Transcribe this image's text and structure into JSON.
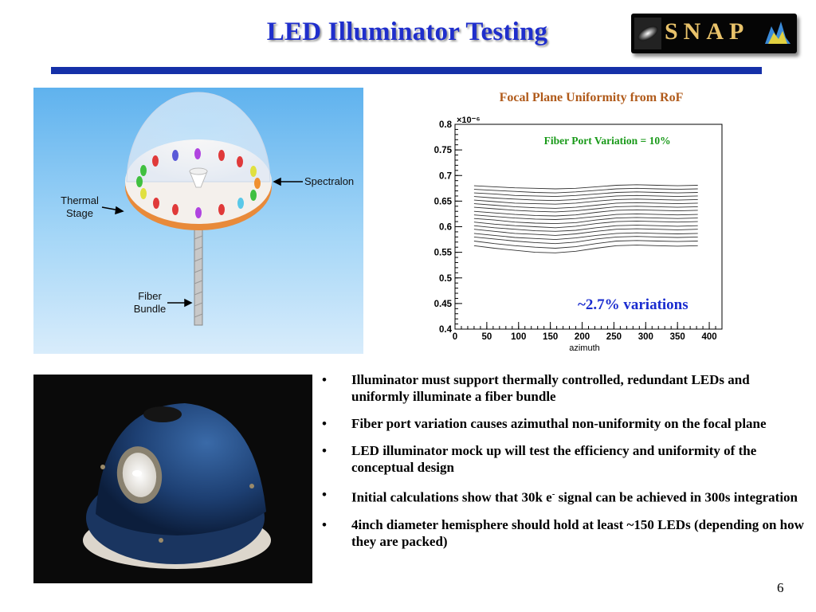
{
  "title": "LED Illuminator Testing",
  "logo": {
    "text": "SNAP"
  },
  "illustration": {
    "labels": {
      "spectralon": "Spectralon",
      "thermal_stage": [
        "Thermal",
        "Stage"
      ],
      "fiber_bundle": [
        "Fiber",
        "Bundle"
      ]
    }
  },
  "chart_data": {
    "type": "line",
    "title": "Focal Plane Uniformity from RoF",
    "annotation": "Fiber Port Variation = 10%",
    "callout": "~2.7% variations",
    "xlabel": "azimuth",
    "ylabel": "",
    "y_multiplier": "×10⁻⁶",
    "xlim": [
      0,
      420
    ],
    "ylim": [
      0.4,
      0.8
    ],
    "x_ticks": [
      "0",
      "50",
      "100",
      "150",
      "200",
      "250",
      "300",
      "350",
      "400"
    ],
    "y_ticks": [
      "0.4",
      "0.45",
      "0.5",
      "0.55",
      "0.6",
      "0.65",
      "0.7",
      "0.75",
      "0.8"
    ],
    "x_range": [
      30,
      382
    ],
    "series": [
      {
        "values": [
          0.68,
          0.678,
          0.676,
          0.675,
          0.674,
          0.675,
          0.678,
          0.681,
          0.682,
          0.681,
          0.68,
          0.681
        ]
      },
      {
        "values": [
          0.673,
          0.671,
          0.669,
          0.667,
          0.666,
          0.668,
          0.671,
          0.674,
          0.675,
          0.674,
          0.673,
          0.674
        ]
      },
      {
        "values": [
          0.666,
          0.664,
          0.661,
          0.66,
          0.659,
          0.661,
          0.664,
          0.667,
          0.668,
          0.667,
          0.666,
          0.667
        ]
      },
      {
        "values": [
          0.659,
          0.656,
          0.654,
          0.652,
          0.651,
          0.653,
          0.657,
          0.66,
          0.661,
          0.66,
          0.659,
          0.66
        ]
      },
      {
        "values": [
          0.652,
          0.649,
          0.646,
          0.645,
          0.644,
          0.646,
          0.65,
          0.653,
          0.654,
          0.653,
          0.652,
          0.653
        ]
      },
      {
        "values": [
          0.645,
          0.642,
          0.639,
          0.637,
          0.636,
          0.638,
          0.642,
          0.646,
          0.647,
          0.646,
          0.645,
          0.646
        ]
      },
      {
        "values": [
          0.638,
          0.635,
          0.632,
          0.63,
          0.629,
          0.631,
          0.635,
          0.639,
          0.64,
          0.639,
          0.638,
          0.639
        ]
      },
      {
        "values": [
          0.63,
          0.627,
          0.624,
          0.622,
          0.621,
          0.623,
          0.628,
          0.632,
          0.633,
          0.632,
          0.631,
          0.632
        ]
      },
      {
        "values": [
          0.623,
          0.62,
          0.617,
          0.615,
          0.614,
          0.616,
          0.62,
          0.624,
          0.625,
          0.624,
          0.623,
          0.624
        ]
      },
      {
        "values": [
          0.616,
          0.613,
          0.609,
          0.607,
          0.606,
          0.608,
          0.613,
          0.617,
          0.618,
          0.617,
          0.616,
          0.617
        ]
      },
      {
        "values": [
          0.609,
          0.605,
          0.602,
          0.6,
          0.598,
          0.601,
          0.606,
          0.61,
          0.611,
          0.61,
          0.609,
          0.61
        ]
      },
      {
        "values": [
          0.602,
          0.598,
          0.595,
          0.592,
          0.591,
          0.593,
          0.598,
          0.602,
          0.603,
          0.602,
          0.601,
          0.602
        ]
      },
      {
        "values": [
          0.595,
          0.591,
          0.587,
          0.585,
          0.583,
          0.586,
          0.591,
          0.595,
          0.596,
          0.595,
          0.594,
          0.595
        ]
      },
      {
        "values": [
          0.587,
          0.583,
          0.579,
          0.577,
          0.575,
          0.578,
          0.583,
          0.587,
          0.588,
          0.587,
          0.586,
          0.587
        ]
      },
      {
        "values": [
          0.58,
          0.576,
          0.572,
          0.569,
          0.567,
          0.57,
          0.576,
          0.58,
          0.581,
          0.58,
          0.579,
          0.58
        ]
      },
      {
        "values": [
          0.572,
          0.567,
          0.563,
          0.56,
          0.558,
          0.561,
          0.567,
          0.572,
          0.573,
          0.572,
          0.571,
          0.572
        ]
      },
      {
        "values": [
          0.563,
          0.558,
          0.554,
          0.55,
          0.549,
          0.552,
          0.558,
          0.563,
          0.564,
          0.563,
          0.562,
          0.563
        ]
      }
    ],
    "grid": false,
    "colors": {
      "lines": "#333333",
      "annotation": "#1a9a1a",
      "callout": "#1a2ccf",
      "title": "#b05a1a"
    }
  },
  "bullets": [
    {
      "text": "Illuminator must support thermally controlled, redundant LEDs and uniformly illuminate a fiber bundle"
    },
    {
      "text": "Fiber port variation causes azimuthal non-uniformity on the focal plane"
    },
    {
      "text": "LED illuminator mock up will test the efficiency and uniformity of the conceptual design"
    },
    {
      "pre": "Initial calculations show that 30k e",
      "sup": "-",
      "post": " signal can be achieved in 300s integration"
    },
    {
      "text": "4inch diameter hemisphere should hold at least ~150 LEDs (depending on how they are packed)"
    }
  ],
  "bullet_symbol": "•",
  "page_number": "6",
  "colors": {
    "title": "#1f2ecc",
    "rule": "#1530a8",
    "accent": "#f0a050"
  }
}
